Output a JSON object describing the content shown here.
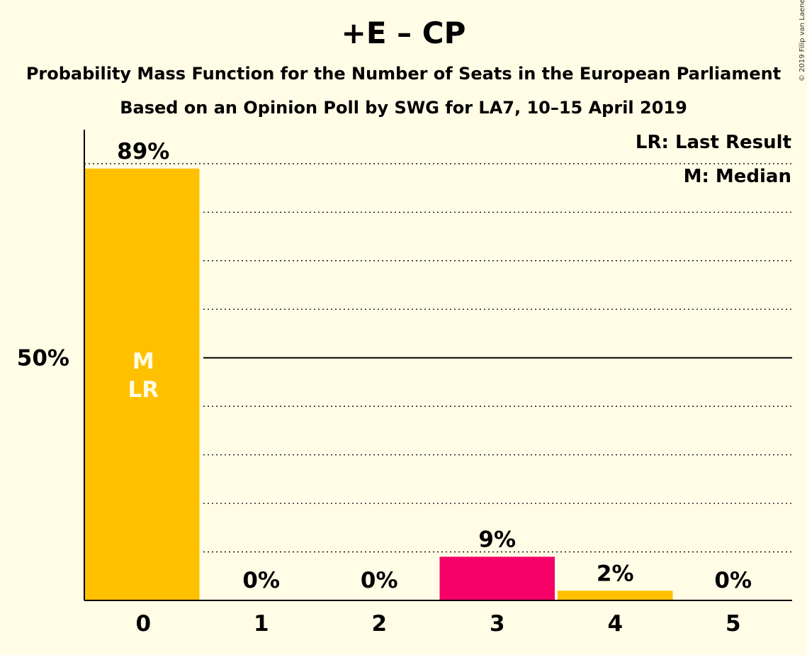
{
  "title": "+E – CP",
  "subtitle_lines": [
    "Probability Mass Function for the Number of Seats in the European Parliament",
    "Based on an Opinion Poll by SWG for LA7, 10–15 April 2019"
  ],
  "copyright": "© 2019 Filip van Laenen",
  "legend": [
    "LR: Last Result",
    "M: Median"
  ],
  "colors": {
    "background": "#FFFDE6",
    "bar_primary": "#FFC000",
    "bar_highlight": "#F50066",
    "bar_label_text": "#FFFDE6"
  },
  "chart_data": {
    "type": "bar",
    "categories": [
      "0",
      "1",
      "2",
      "3",
      "4",
      "5"
    ],
    "values": [
      89,
      0,
      0,
      9,
      2,
      0
    ],
    "value_labels": [
      "89%",
      "0%",
      "0%",
      "9%",
      "2%",
      "0%"
    ],
    "bar_colors": [
      "#FFC000",
      "#FFC000",
      "#FFC000",
      "#F50066",
      "#FFC000",
      "#FFC000"
    ],
    "in_bar_labels": [
      [
        "M",
        "LR"
      ],
      [],
      [],
      [],
      [],
      []
    ],
    "ylim": [
      0,
      97
    ],
    "y_tick_labels": [
      {
        "value": 50,
        "label": "50%"
      }
    ],
    "dotted_gridlines": [
      10,
      20,
      30,
      40,
      60,
      70,
      80,
      90
    ],
    "solid_gridlines": [
      50
    ],
    "grid": true,
    "legend_placement": "top-right"
  }
}
